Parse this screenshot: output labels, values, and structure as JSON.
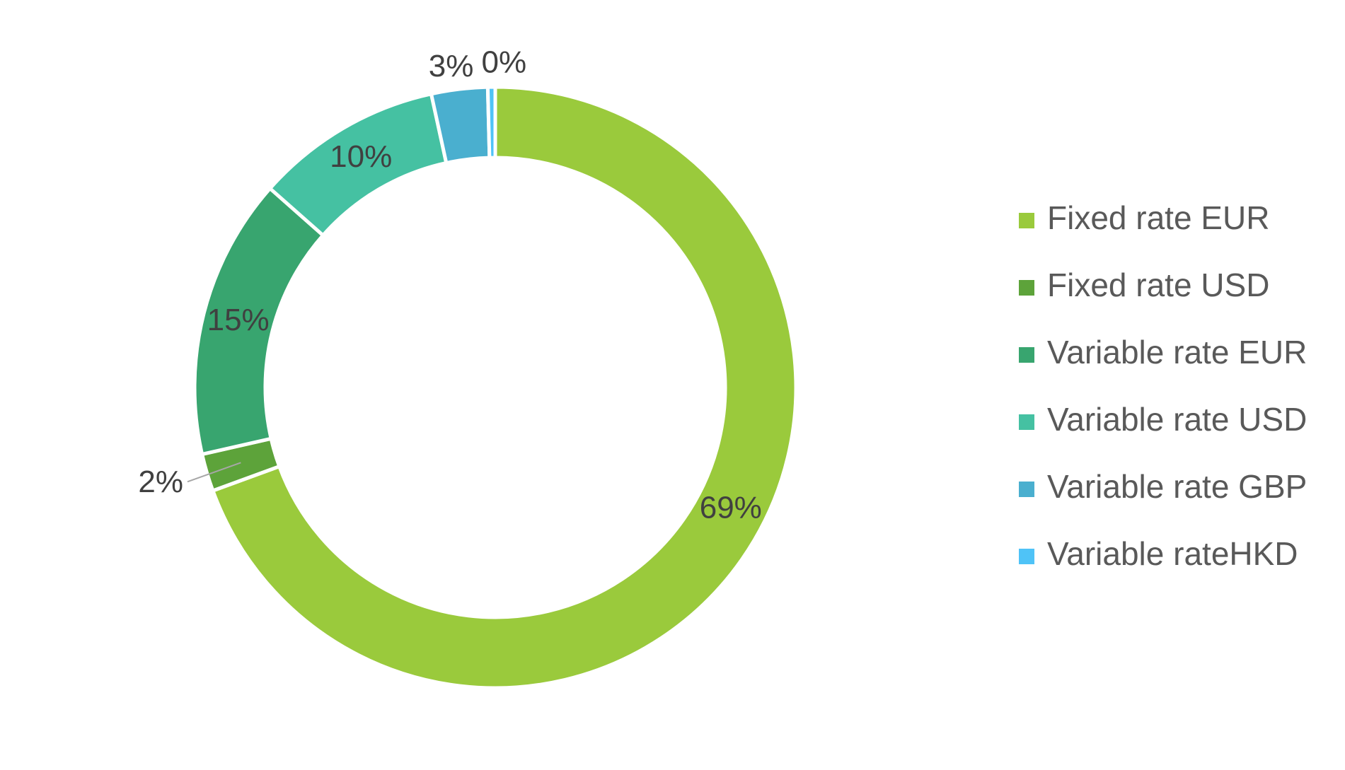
{
  "chart_data": {
    "type": "pie",
    "subtype": "donut",
    "title": "",
    "categories": [
      "Fixed rate EUR",
      "Fixed rate USD",
      "Variable rate EUR",
      "Variable rate USD",
      "Variable rate GBP",
      "Variable rateHKD"
    ],
    "values": [
      69,
      2,
      15,
      10,
      3,
      0
    ],
    "data_labels": [
      "69%",
      "2%",
      "15%",
      "10%",
      "3%",
      "0%"
    ],
    "colors": [
      "#9ACA3C",
      "#5DA33A",
      "#38A56F",
      "#45C1A2",
      "#4AAFCF",
      "#4FC3F7"
    ],
    "legend_position": "right",
    "grid": false
  }
}
